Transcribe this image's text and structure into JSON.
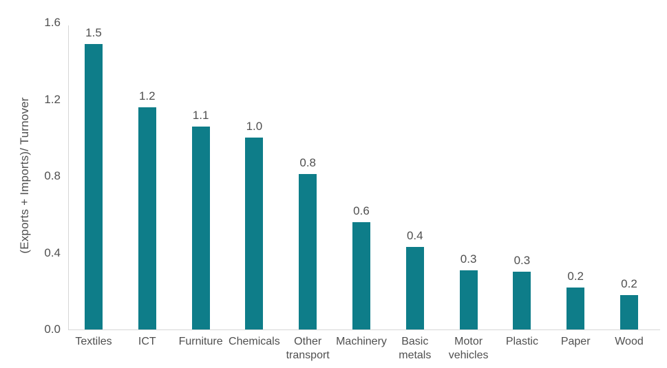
{
  "chart_data": {
    "type": "bar",
    "title": "",
    "xlabel": "",
    "ylabel": "(Exports + Imports)/ Turnover",
    "categories": [
      "Textiles",
      "ICT",
      "Furniture",
      "Chemicals",
      "Other transport",
      "Machinery",
      "Basic metals",
      "Motor vehicles",
      "Plastic",
      "Paper",
      "Wood"
    ],
    "categories_wrapped": [
      "Textiles",
      "ICT",
      "Furniture",
      "Chemicals",
      "Other\ntransport",
      "Machinery",
      "Basic\nmetals",
      "Motor\nvehicles",
      "Plastic",
      "Paper",
      "Wood"
    ],
    "values": [
      1.49,
      1.16,
      1.06,
      1.0,
      0.81,
      0.56,
      0.43,
      0.31,
      0.3,
      0.22,
      0.18
    ],
    "data_labels": [
      "1.5",
      "1.2",
      "1.1",
      "1.0",
      "0.8",
      "0.6",
      "0.4",
      "0.3",
      "0.3",
      "0.2",
      "0.2"
    ],
    "y_ticks": [
      "0.0",
      "0.4",
      "0.8",
      "1.2",
      "1.6"
    ],
    "y_tick_values": [
      0.0,
      0.4,
      0.8,
      1.2,
      1.6
    ],
    "ylim": [
      0,
      1.6
    ],
    "grid": false,
    "legend": false,
    "colors": {
      "bar": "#0E7D89",
      "axis_line": "#D6D6D6",
      "text": "#4F4F4F"
    }
  }
}
